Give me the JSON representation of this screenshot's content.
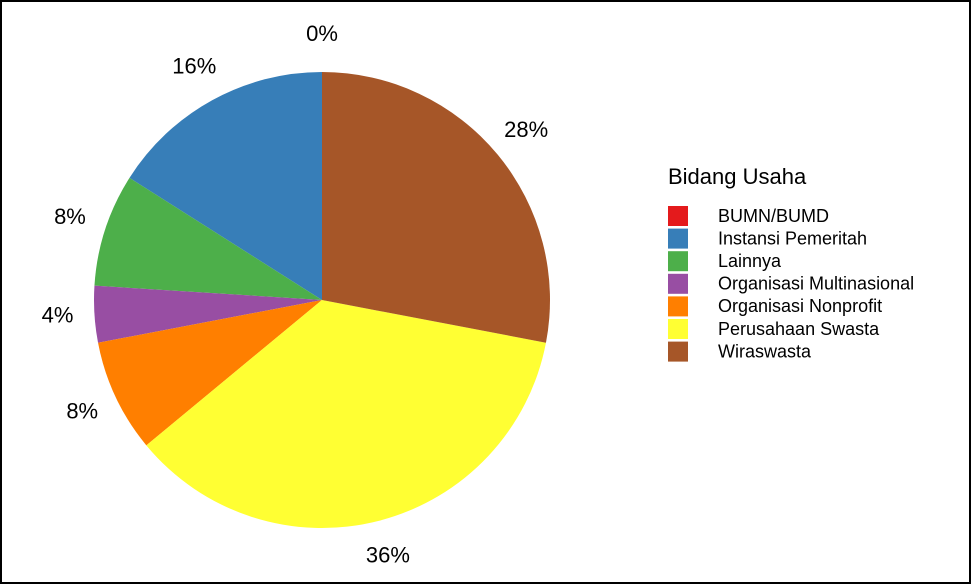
{
  "chart_data": {
    "type": "pie",
    "legend_title": "Bidang Usaha",
    "categories": [
      "BUMN/BUMD",
      "Instansi Pemeritah",
      "Lainnya",
      "Organisasi Multinasional",
      "Organisasi Nonprofit",
      "Perusahaan Swasta",
      "Wiraswasta"
    ],
    "values": [
      0,
      16,
      8,
      4,
      8,
      36,
      28
    ],
    "value_labels": [
      "0%",
      "16%",
      "8%",
      "4%",
      "8%",
      "36%",
      "28%"
    ],
    "colors": [
      "#E41A1C",
      "#377EB8",
      "#4DAF4A",
      "#984EA3",
      "#FF7F00",
      "#FFFF33",
      "#A65628"
    ],
    "legend": "right"
  }
}
